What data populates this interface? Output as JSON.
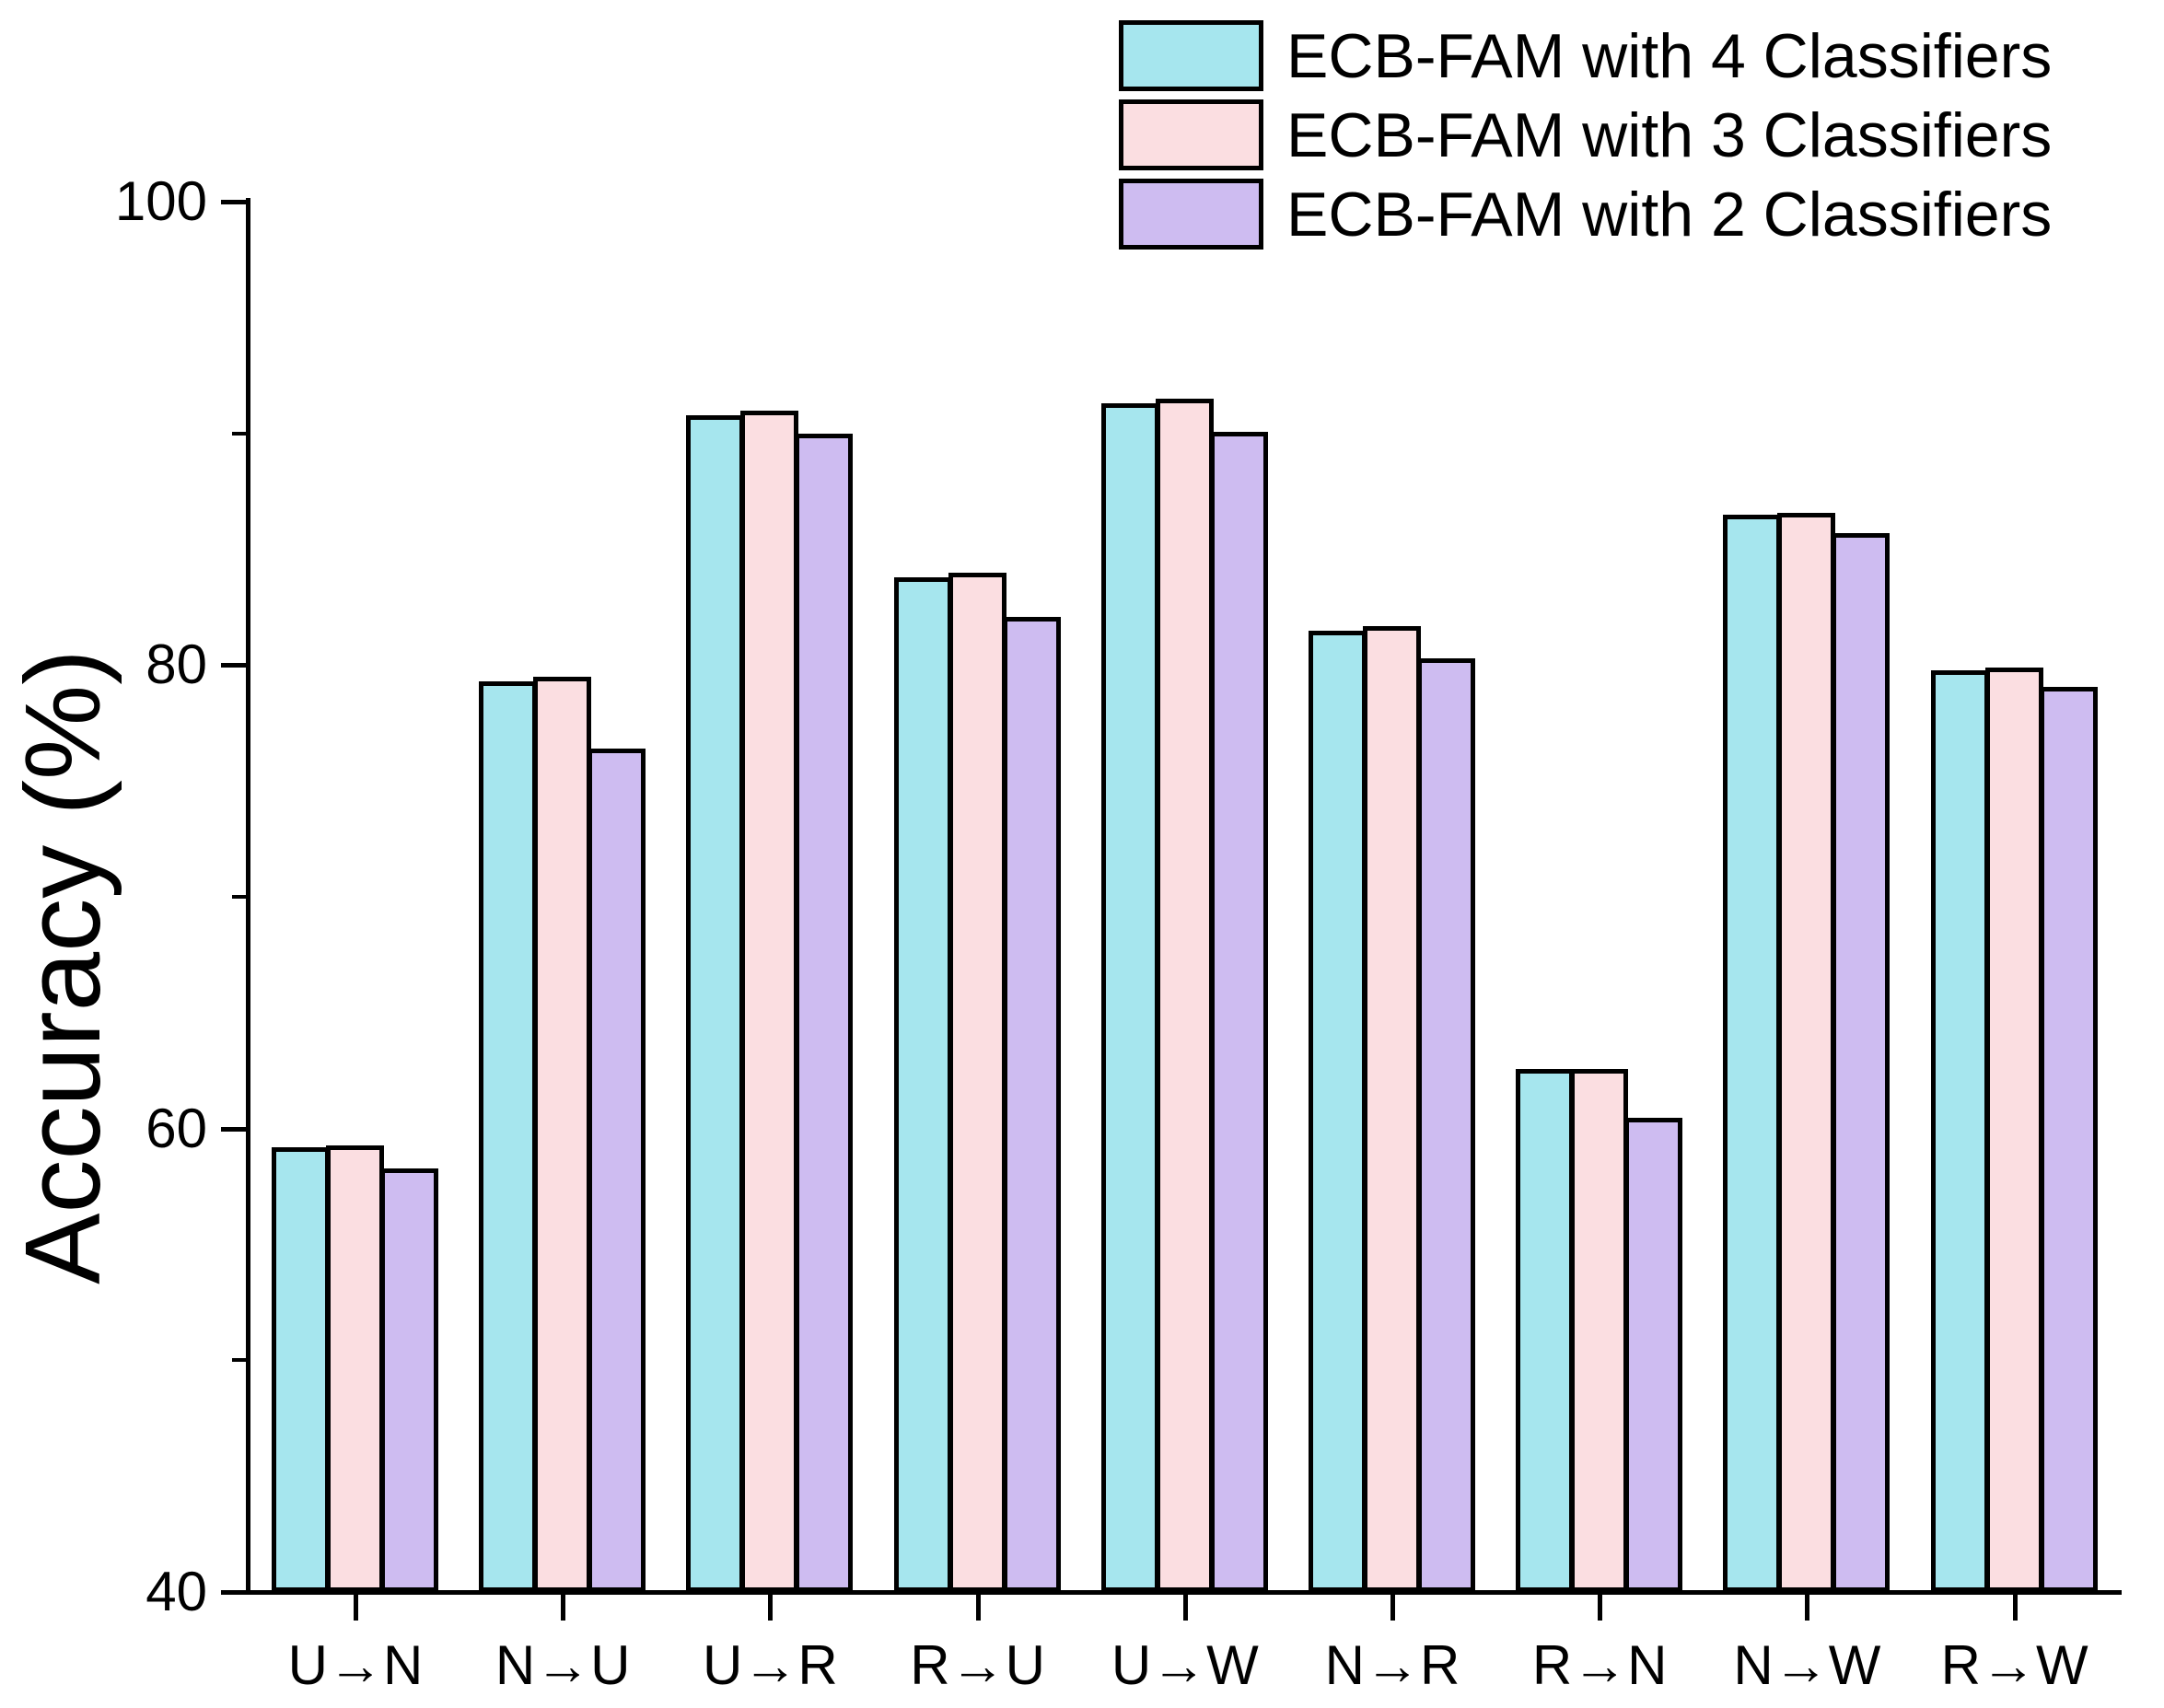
{
  "figure": {
    "background": "#ffffff",
    "axis_color": "#000000"
  },
  "chart_data": {
    "type": "bar",
    "title": "",
    "xlabel": "",
    "ylabel": "Accuracy (%)",
    "ylim": [
      40,
      100
    ],
    "yticks_major": [
      40,
      60,
      80,
      100
    ],
    "yticks_minor": [
      50,
      70,
      90
    ],
    "grid": false,
    "legend_position": "top-right",
    "bar_border_color": "#000000",
    "categories": [
      "U→N",
      "N→U",
      "U→R",
      "R→U",
      "U→W",
      "N→R",
      "R→N",
      "N→W",
      "R→W"
    ],
    "series": [
      {
        "name": "ECB-FAM with 4 Classifiers",
        "color": "#A6E6EE",
        "values": [
          59.1,
          79.2,
          90.7,
          83.7,
          91.2,
          81.4,
          62.5,
          86.4,
          79.7
        ]
      },
      {
        "name": "ECB-FAM with 3 Classifiers",
        "color": "#FBDEE1",
        "values": [
          59.2,
          79.4,
          90.9,
          83.9,
          91.4,
          81.6,
          62.5,
          86.5,
          79.8
        ]
      },
      {
        "name": "ECB-FAM with 2 Classifiers",
        "color": "#CEBCF1",
        "values": [
          58.2,
          76.3,
          89.9,
          82.0,
          90.0,
          80.2,
          60.4,
          85.6,
          79.0
        ]
      }
    ]
  }
}
